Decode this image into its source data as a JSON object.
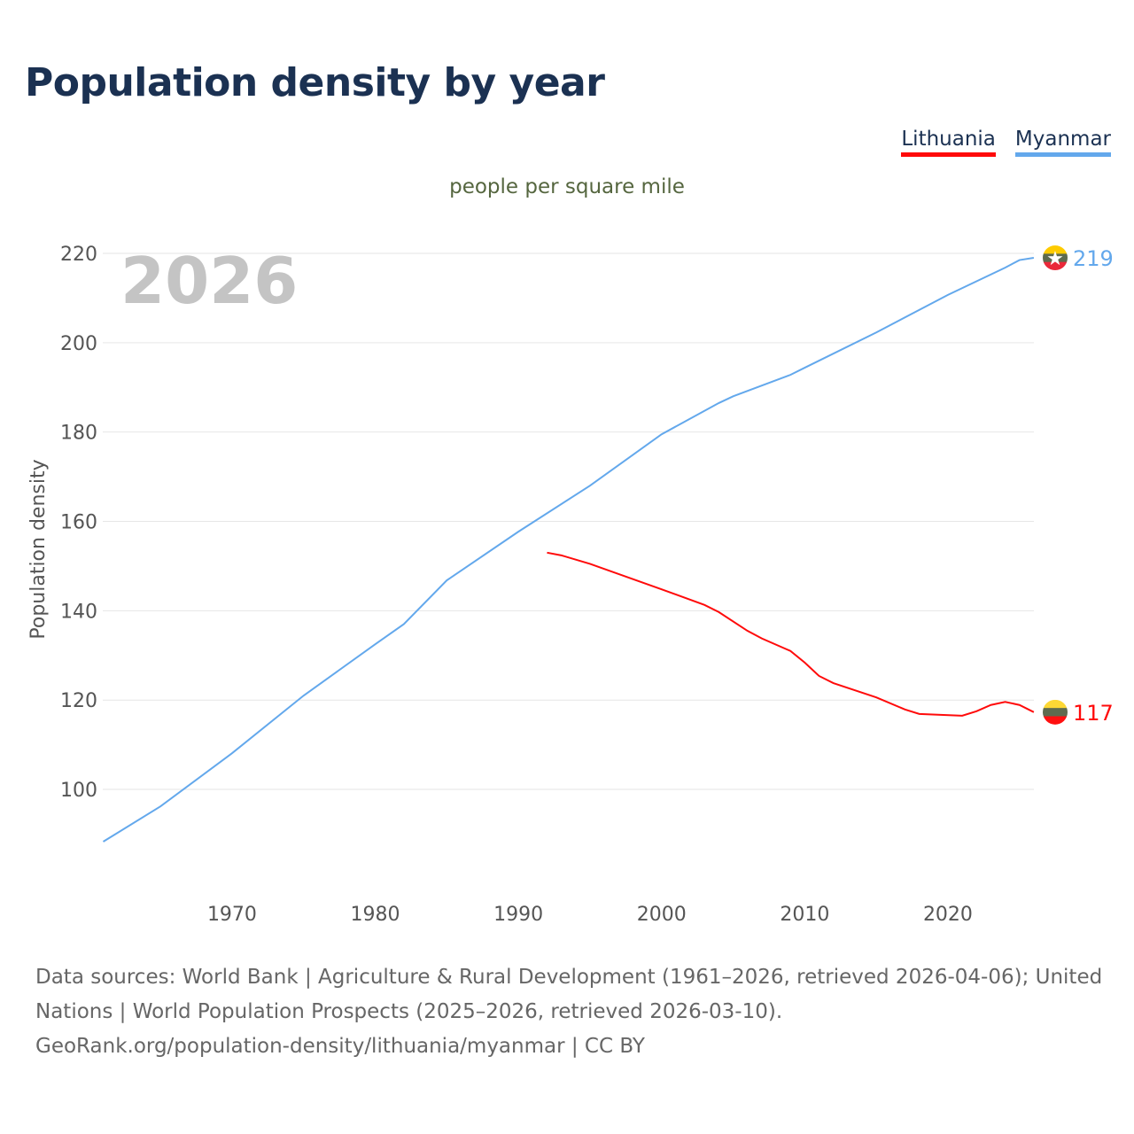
{
  "title": "Population density by year",
  "legend": [
    {
      "name": "Lithuania",
      "color": "#ff0a0a"
    },
    {
      "name": "Myanmar",
      "color": "#63a8ec"
    }
  ],
  "chart_data": {
    "type": "line",
    "title": "Population density by year",
    "subtitle": "people per square mile",
    "ylabel": "Population density",
    "xlabel": "",
    "year_label": "2026",
    "ylim": [
      78,
      240
    ],
    "xlim": [
      1961,
      2026
    ],
    "yticks": [
      100,
      120,
      140,
      160,
      180,
      200,
      220
    ],
    "xticks": [
      1970,
      1980,
      1990,
      2000,
      2010,
      2020
    ],
    "grid": true,
    "legend_position": "top-right",
    "series": [
      {
        "name": "Myanmar",
        "color": "#63a8ec",
        "end_label": "219",
        "x": [
          1961,
          1965,
          1970,
          1975,
          1980,
          1982,
          1985,
          1990,
          1995,
          2000,
          2004,
          2005,
          2009,
          2010,
          2015,
          2020,
          2024,
          2025,
          2026
        ],
        "y": [
          88.3,
          96.2,
          108.1,
          121,
          132.5,
          137,
          146.8,
          157.7,
          168,
          179.5,
          186.5,
          188,
          192.8,
          194.4,
          202.3,
          210.7,
          216.8,
          218.5,
          219
        ]
      },
      {
        "name": "Lithuania",
        "color": "#ff0a0a",
        "end_label": "117",
        "x": [
          1992,
          1993,
          1995,
          2000,
          2003,
          2004,
          2006,
          2007,
          2009,
          2010,
          2011,
          2012,
          2015,
          2017,
          2018,
          2021,
          2022,
          2023,
          2024,
          2025,
          2026
        ],
        "y": [
          153,
          152.4,
          150.5,
          144.8,
          141.3,
          139.7,
          135.5,
          133.8,
          131,
          128.4,
          125.4,
          123.8,
          120.6,
          117.9,
          116.9,
          116.5,
          117.5,
          118.9,
          119.6,
          118.9,
          117.3
        ]
      }
    ]
  },
  "footer": {
    "line1": "Data sources: World Bank | Agriculture & Rural Development (1961–2026, retrieved 2026-04-06); United Nations | World Population Prospects (2025–2026, retrieved 2026-03-10).",
    "line2": "GeoRank.org/population-density/lithuania/myanmar | CC BY"
  }
}
